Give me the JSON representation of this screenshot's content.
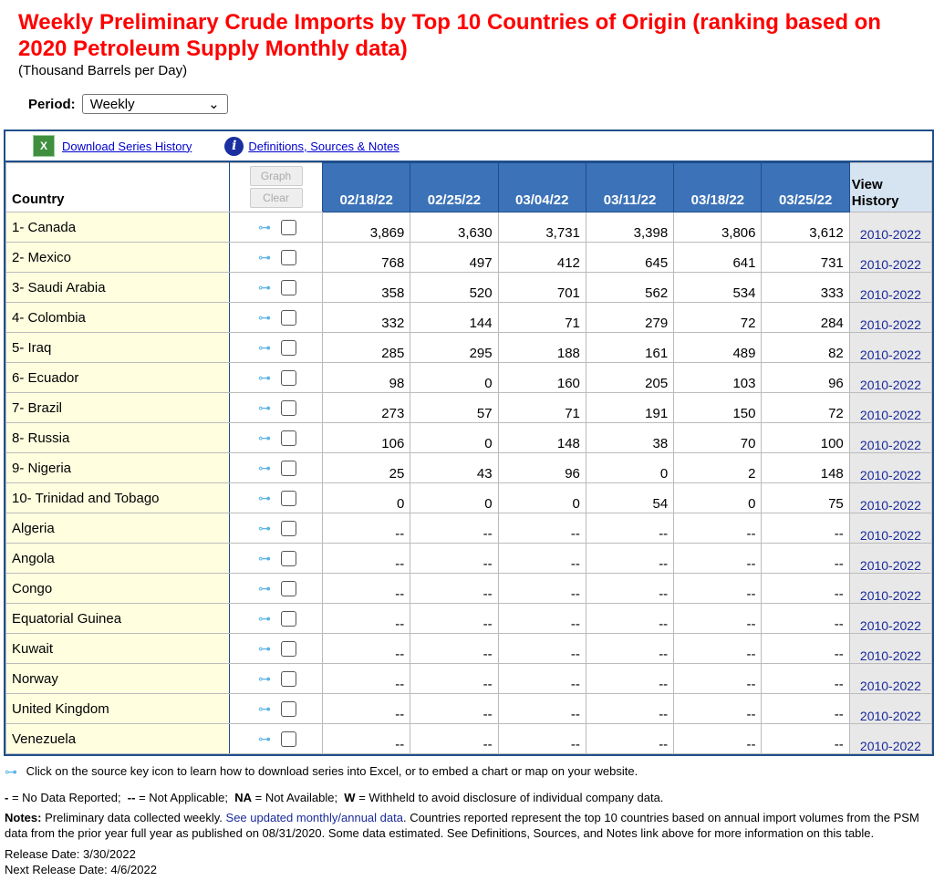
{
  "title": "Weekly Preliminary Crude Imports by Top 10 Countries of Origin (ranking based on 2020 Petroleum Supply Monthly data)",
  "units": "(Thousand Barrels per Day)",
  "period_label": "Period:",
  "period_value": "Weekly",
  "links": {
    "download": "Download Series History",
    "definitions": "Definitions, Sources & Notes"
  },
  "header": {
    "country": "Country",
    "graph": "Graph",
    "clear": "Clear",
    "dates": [
      "02/18/22",
      "02/25/22",
      "03/04/22",
      "03/11/22",
      "03/18/22",
      "03/25/22"
    ],
    "view": "View",
    "history": "History"
  },
  "rows": [
    {
      "name": "1- Canada",
      "values": [
        "3,869",
        "3,630",
        "3,731",
        "3,398",
        "3,806",
        "3,612"
      ],
      "history": "2010-2022"
    },
    {
      "name": "2- Mexico",
      "values": [
        "768",
        "497",
        "412",
        "645",
        "641",
        "731"
      ],
      "history": "2010-2022"
    },
    {
      "name": "3- Saudi Arabia",
      "values": [
        "358",
        "520",
        "701",
        "562",
        "534",
        "333"
      ],
      "history": "2010-2022"
    },
    {
      "name": "4- Colombia",
      "values": [
        "332",
        "144",
        "71",
        "279",
        "72",
        "284"
      ],
      "history": "2010-2022"
    },
    {
      "name": "5- Iraq",
      "values": [
        "285",
        "295",
        "188",
        "161",
        "489",
        "82"
      ],
      "history": "2010-2022"
    },
    {
      "name": "6- Ecuador",
      "values": [
        "98",
        "0",
        "160",
        "205",
        "103",
        "96"
      ],
      "history": "2010-2022"
    },
    {
      "name": "7- Brazil",
      "values": [
        "273",
        "57",
        "71",
        "191",
        "150",
        "72"
      ],
      "history": "2010-2022"
    },
    {
      "name": "8- Russia",
      "values": [
        "106",
        "0",
        "148",
        "38",
        "70",
        "100"
      ],
      "history": "2010-2022"
    },
    {
      "name": "9- Nigeria",
      "values": [
        "25",
        "43",
        "96",
        "0",
        "2",
        "148"
      ],
      "history": "2010-2022"
    },
    {
      "name": "10- Trinidad and Tobago",
      "values": [
        "0",
        "0",
        "0",
        "54",
        "0",
        "75"
      ],
      "history": "2010-2022"
    },
    {
      "name": "Algeria",
      "values": [
        "--",
        "--",
        "--",
        "--",
        "--",
        "--"
      ],
      "history": "2010-2022"
    },
    {
      "name": "Angola",
      "values": [
        "--",
        "--",
        "--",
        "--",
        "--",
        "--"
      ],
      "history": "2010-2022"
    },
    {
      "name": "Congo",
      "values": [
        "--",
        "--",
        "--",
        "--",
        "--",
        "--"
      ],
      "history": "2010-2022"
    },
    {
      "name": "Equatorial Guinea",
      "values": [
        "--",
        "--",
        "--",
        "--",
        "--",
        "--"
      ],
      "history": "2010-2022"
    },
    {
      "name": "Kuwait",
      "values": [
        "--",
        "--",
        "--",
        "--",
        "--",
        "--"
      ],
      "history": "2010-2022"
    },
    {
      "name": "Norway",
      "values": [
        "--",
        "--",
        "--",
        "--",
        "--",
        "--"
      ],
      "history": "2010-2022"
    },
    {
      "name": "United Kingdom",
      "values": [
        "--",
        "--",
        "--",
        "--",
        "--",
        "--"
      ],
      "history": "2010-2022"
    },
    {
      "name": "Venezuela",
      "values": [
        "--",
        "--",
        "--",
        "--",
        "--",
        "--"
      ],
      "history": "2010-2022"
    }
  ],
  "footer": {
    "key_note": "Click on the source key icon to learn how to download series into Excel, or to embed a chart or map on your website.",
    "legend": [
      {
        "sym": "-",
        "text": " = No Data Reported;  "
      },
      {
        "sym": "--",
        "text": " = Not Applicable;  "
      },
      {
        "sym": "NA",
        "text": " = Not Available;  "
      },
      {
        "sym": "W",
        "text": " = Withheld to avoid disclosure of individual company data."
      }
    ],
    "notes_label": "Notes:",
    "notes_pre": " Preliminary data collected weekly. ",
    "notes_link": "See updated monthly/annual data",
    "notes_post": ". Countries reported represent the top 10 countries based on annual import volumes from the PSM data from the prior year full year as published on 08/31/2020. Some data estimated.  See Definitions, Sources, and Notes link above for more information on this table.",
    "release": "Release Date: 3/30/2022",
    "next_release": "Next Release Date: 4/6/2022"
  }
}
